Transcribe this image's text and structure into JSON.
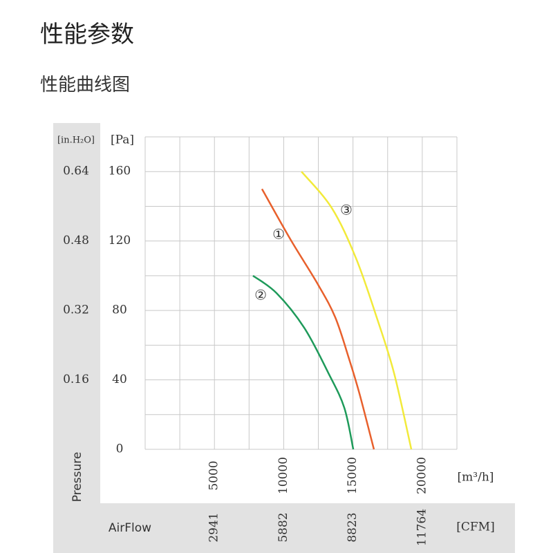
{
  "header": {
    "title": "性能参数",
    "subtitle": "性能曲线图"
  },
  "chart_data": {
    "type": "line",
    "y_title": "Pressure",
    "x_title": "AirFlow",
    "y_unit": "[Pa]",
    "y2_unit": "[in.H₂O]",
    "x_unit": "[m³/h]",
    "x2_unit": "[CFM]",
    "xlim": [
      0,
      22500
    ],
    "xticks": [
      5000,
      10000,
      15000,
      20000
    ],
    "xgrid": [
      0,
      2500,
      5000,
      7500,
      10000,
      12500,
      15000,
      17500,
      20000,
      22500
    ],
    "x2lim": [
      0,
      13235
    ],
    "x2ticks": [
      2941,
      5882,
      8823,
      11764
    ],
    "ylim": [
      0,
      180
    ],
    "yticks": [
      0,
      40,
      80,
      120,
      160
    ],
    "ygrid": [
      0,
      20,
      40,
      60,
      80,
      100,
      120,
      140,
      160,
      180
    ],
    "y2lim": [
      0,
      0.72
    ],
    "y2ticks": [
      0.16,
      0.32,
      0.48,
      0.64
    ],
    "grid": true,
    "series": [
      {
        "name": "①",
        "color": "#e8602c",
        "x": [
          8430,
          10480,
          12470,
          13720,
          14720,
          15470,
          16510
        ],
        "values": [
          150,
          121,
          95,
          76,
          52,
          32,
          0
        ]
      },
      {
        "name": "②",
        "color": "#1e9a5a",
        "x": [
          7780,
          9480,
          11480,
          13220,
          14370,
          15020
        ],
        "values": [
          100,
          90,
          70,
          44,
          24,
          0
        ]
      },
      {
        "name": "③",
        "color": "#f2ea3a",
        "x": [
          11280,
          13470,
          15220,
          16710,
          17960,
          19210
        ],
        "values": [
          160,
          139,
          110,
          76,
          44,
          0
        ]
      }
    ]
  }
}
